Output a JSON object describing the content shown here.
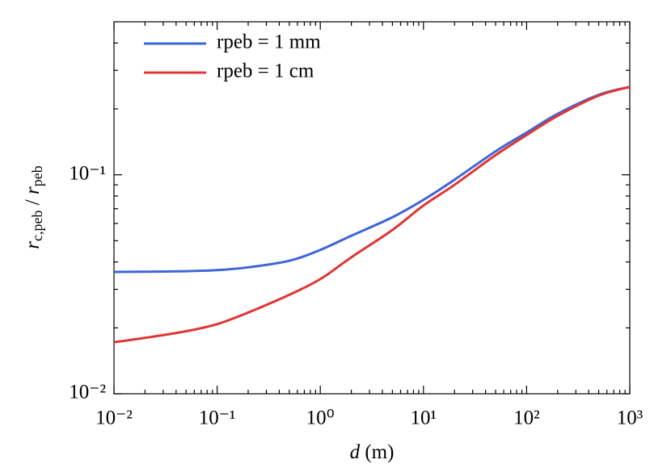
{
  "chart_data": {
    "type": "line",
    "log_x": true,
    "log_y": true,
    "xlabel": [
      "d",
      " (m)"
    ],
    "ylabel": [
      "r",
      "c,peb",
      " / ",
      "r",
      "peb"
    ],
    "x": [
      0.01,
      0.02,
      0.05,
      0.1,
      0.2,
      0.5,
      1,
      2,
      5,
      10,
      20,
      50,
      100,
      200,
      500,
      1000
    ],
    "series": [
      {
        "name": "rpeb = 1 mm",
        "color": "#3f66d8",
        "values": [
          0.036,
          0.0361,
          0.0363,
          0.0367,
          0.0378,
          0.0405,
          0.0454,
          0.0527,
          0.064,
          0.0769,
          0.095,
          0.128,
          0.156,
          0.19,
          0.232,
          0.252
        ]
      },
      {
        "name": "rpeb = 1 cm",
        "color": "#e03535",
        "values": [
          0.0172,
          0.018,
          0.0193,
          0.0208,
          0.0235,
          0.0283,
          0.0334,
          0.042,
          0.056,
          0.0724,
          0.09,
          0.123,
          0.152,
          0.186,
          0.23,
          0.252
        ]
      }
    ],
    "xlim": [
      0.01,
      1000
    ],
    "ylim": [
      0.01,
      0.5
    ],
    "xticks": [
      {
        "value": 0.01,
        "label": "10⁻²"
      },
      {
        "value": 0.1,
        "label": "10⁻¹"
      },
      {
        "value": 1,
        "label": "10⁰"
      },
      {
        "value": 10,
        "label": "10¹"
      },
      {
        "value": 100,
        "label": "10²"
      },
      {
        "value": 1000,
        "label": "10³"
      }
    ],
    "yticks": [
      {
        "value": 0.01,
        "label": "10⁻²"
      },
      {
        "value": 0.1,
        "label": "10⁻¹"
      }
    ],
    "xminorticks": [
      0.02,
      0.03,
      0.04,
      0.05,
      0.06,
      0.07,
      0.08,
      0.09,
      0.2,
      0.3,
      0.4,
      0.5,
      0.6,
      0.7,
      0.8,
      0.9,
      2,
      3,
      4,
      5,
      6,
      7,
      8,
      9,
      20,
      30,
      40,
      50,
      60,
      70,
      80,
      90,
      200,
      300,
      400,
      500,
      600,
      700,
      800,
      900
    ],
    "yminorticks": [
      0.02,
      0.03,
      0.04,
      0.05,
      0.06,
      0.07,
      0.08,
      0.09,
      0.2,
      0.3,
      0.4
    ],
    "legend": "upper left",
    "grid": false
  }
}
